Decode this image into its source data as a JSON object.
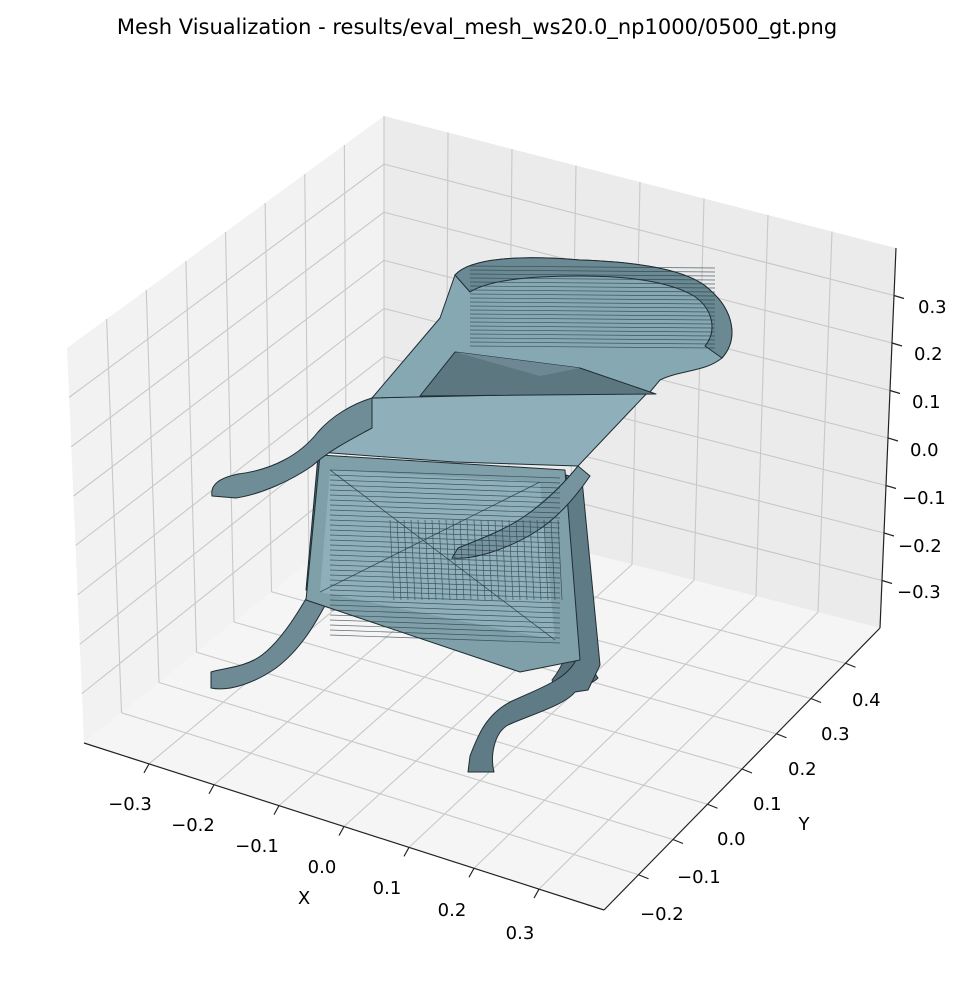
{
  "chart_data": {
    "type": "mesh3d",
    "title": "Mesh Visualization - results/eval_mesh_ws20.0_np1000/0500_gt.png",
    "xlabel": "X",
    "ylabel": "Y",
    "zlabel": "",
    "x_ticks": [
      "−0.3",
      "−0.2",
      "−0.1",
      "0.0",
      "0.1",
      "0.2",
      "0.3"
    ],
    "y_ticks": [
      "−0.2",
      "−0.1",
      "0.0",
      "0.1",
      "0.2",
      "0.3",
      "0.4"
    ],
    "z_ticks": [
      "0.3",
      "0.2",
      "0.1",
      "0.0",
      "−0.1",
      "−0.2",
      "−0.3"
    ],
    "grid": true,
    "colors": {
      "face": "#86a8b3",
      "face_dark": "#4c666f",
      "edge": "#1f2d33",
      "pane_light": "#f5f5f5",
      "pane_mid": "#efefef",
      "pane_dark": "#e8e8e8",
      "grid": "#c8c8c8"
    }
  }
}
